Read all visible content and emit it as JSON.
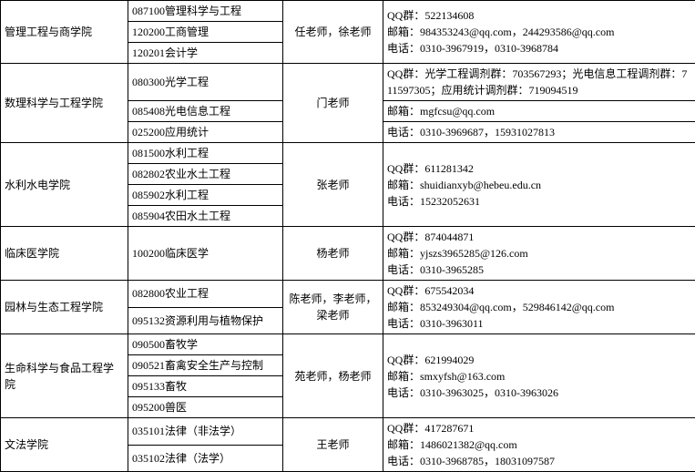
{
  "rows": [
    {
      "college": "管理工程与商学院",
      "college_rs": 3,
      "program": "087100管理科学与工程",
      "teacher": "任老师，徐老师",
      "teacher_rs": 3,
      "contacts": [
        "QQ群：522134608",
        "邮箱：984353243@qq.com，244293586@qq.com",
        "电话：0310-3967919，0310-3968784"
      ],
      "contact_rs": 3
    },
    {
      "program": "120200工商管理"
    },
    {
      "program": "120201会计学"
    },
    {
      "college": "数理科学与工程学院",
      "college_rs": 3,
      "program": "080300光学工程",
      "teacher": "门老师",
      "teacher_rs": 3,
      "contacts": [
        "QQ群：光学工程调剂群：703567293；光电信息工程调剂群：711597305；应用统计调剂群：719094519"
      ]
    },
    {
      "program": "085408光电信息工程",
      "contacts": [
        "邮箱：mgfcsu@qq.com"
      ]
    },
    {
      "program": "025200应用统计",
      "contacts": [
        "电话：0310-3969687，15931027813"
      ]
    },
    {
      "college": "水利水电学院",
      "college_rs": 4,
      "program": "081500水利工程",
      "teacher": "张老师",
      "teacher_rs": 4,
      "contacts": [
        "QQ群：611281342",
        "邮箱：shuidianxyb@hebeu.edu.cn",
        "电话：15232052631"
      ],
      "contact_rs": 4
    },
    {
      "program": "082802农业水土工程"
    },
    {
      "program": "085902水利工程"
    },
    {
      "program": "085904农田水土工程"
    },
    {
      "college": "临床医学院",
      "program": "100200临床医学",
      "teacher": "杨老师",
      "contacts": [
        "QQ群：874044871",
        "邮箱：yjszs3965285@126.com",
        "电话：0310-3965285"
      ]
    },
    {
      "college": "园林与生态工程学院",
      "college_rs": 2,
      "program": "082800农业工程",
      "teacher": "陈老师，李老师，梁老师",
      "teacher_rs": 2,
      "contacts": [
        "QQ群：675542034",
        "邮箱：853249304@qq.com，529846142@qq.com",
        "电话：0310-3963011"
      ],
      "contact_rs": 2
    },
    {
      "program": "095132资源利用与植物保护"
    },
    {
      "college": "生命科学与食品工程学院",
      "college_rs": 4,
      "program": "090500畜牧学",
      "teacher": "苑老师，杨老师",
      "teacher_rs": 4,
      "contacts": [
        "QQ群：621994029",
        "邮箱：smxyfsh@163.com",
        "电话：0310-3963025，0310-3963026"
      ],
      "contact_rs": 4
    },
    {
      "program": "090521畜禽安全生产与控制"
    },
    {
      "program": "095133畜牧"
    },
    {
      "program": "095200兽医"
    },
    {
      "college": "文法学院",
      "college_rs": 2,
      "program": "035101法律（非法学）",
      "teacher": "王老师",
      "teacher_rs": 2,
      "contacts": [
        "QQ群：417287671",
        "邮箱：1486021382@qq.com",
        "电话：0310-3968785，18031097587"
      ],
      "contact_rs": 2
    },
    {
      "program": "035102法律（法学）"
    }
  ],
  "style": {
    "background": "#ffffff",
    "text": "#000000",
    "border": "#000000",
    "fontsize_pt": 9
  }
}
